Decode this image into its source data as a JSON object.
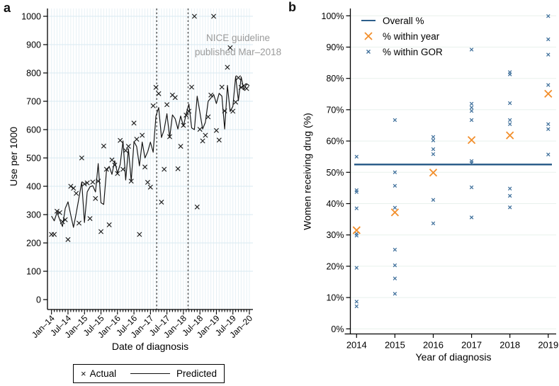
{
  "figure": {
    "panel_a": {
      "letter": "a",
      "y_axis_title": "Use per 1000",
      "x_axis_title": "Date of diagnosis",
      "annotation_line1": "NICE guideline",
      "annotation_line2": "published Mar–2018",
      "legend": {
        "actual_marker": "×",
        "actual_label": "Actual",
        "predicted_label": "Predicted"
      }
    },
    "panel_b": {
      "letter": "b",
      "y_axis_title": "Women receiving drug (%)",
      "x_axis_title": "Year of diagnosis",
      "legend": {
        "overall_label": "Overall %",
        "year_label": "% within year",
        "gor_label": "% within GOR"
      }
    },
    "colors": {
      "overall_line": "#2d5f8b",
      "within_year": "#f28e2b",
      "within_gor": "#41719c",
      "actual_marker": "#1a1a1a",
      "predicted_line": "#111111",
      "vline": "#595959",
      "annotation": "#9b9b9b",
      "grid_a_h": "#d8eaf2",
      "grid_a_v": "#e4eff4",
      "grid_b": "#e8f1ec"
    }
  },
  "chart_data": [
    {
      "type": "line",
      "panel": "a",
      "title": "",
      "xlabel": "Date of diagnosis",
      "ylabel": "Use per 1000",
      "ylim": [
        0,
        1000
      ],
      "ytick_step": 100,
      "x_unit": "month index from Jan-2014",
      "xtick_labels": [
        "Jan–14",
        "Jul–14",
        "Jan–15",
        "Jul–15",
        "Jan–16",
        "Jul–16",
        "Jan–17",
        "Jul–17",
        "Jan–18",
        "Jul–18",
        "Jan–19",
        "Jul–19",
        "Jan–20"
      ],
      "xtick_month_interval": 6,
      "grid": true,
      "vline_months": [
        38.3,
        49.7
      ],
      "vline_meaning": "second dashed line = NICE guideline published Mar-2018",
      "series": [
        {
          "name": "Actual",
          "style": "scatter-x",
          "values": [
            230,
            230,
            312,
            307,
            275,
            282,
            212,
            400,
            393,
            375,
            270,
            500,
            408,
            412,
            286,
            415,
            357,
            418,
            240,
            542,
            460,
            264,
            493,
            475,
            445,
            562,
            460,
            526,
            541,
            418,
            623,
            566,
            230,
            580,
            468,
            414,
            397,
            684,
            749,
            727,
            344,
            460,
            688,
            575,
            722,
            713,
            462,
            541,
            615,
            651,
            665,
            750,
            1000,
            327,
            601,
            560,
            580,
            645,
            722,
            1000,
            597,
            563,
            750,
            666,
            820,
            889,
            665,
            697,
            783,
            749,
            755,
            745
          ]
        },
        {
          "name": "Predicted",
          "style": "line",
          "values": [
            295,
            278,
            308,
            282,
            258,
            322,
            345,
            298,
            255,
            305,
            360,
            415,
            272,
            380,
            398,
            402,
            380,
            480,
            342,
            336,
            455,
            470,
            442,
            490,
            446,
            478,
            560,
            422,
            532,
            418,
            558,
            540,
            472,
            556,
            500,
            522,
            556,
            520,
            648,
            678,
            572,
            600,
            656,
            572,
            652,
            638,
            602,
            648,
            612,
            656,
            690,
            606,
            600,
            718,
            660,
            602,
            626,
            700,
            712,
            724,
            692,
            728,
            718,
            602,
            756,
            664,
            682,
            788,
            702,
            786,
            740,
            762,
            755
          ]
        }
      ]
    },
    {
      "type": "scatter",
      "panel": "b",
      "title": "",
      "xlabel": "Year of diagnosis",
      "ylabel": "Women receiving drug (%)",
      "ylim": [
        0,
        100
      ],
      "ytick_step": 10,
      "ytick_suffix": "%",
      "grid": true,
      "categories": [
        2014,
        2015,
        2016,
        2017,
        2018,
        2019
      ],
      "overall_pct": 52.5,
      "within_year_pct": [
        31.5,
        37.2,
        49.9,
        60.3,
        61.8,
        75.1
      ],
      "within_gor_pct": [
        [
          55.0,
          44.3,
          43.7,
          38.5,
          30.4,
          29.8,
          19.5,
          8.7,
          7.2
        ],
        [
          66.7,
          50.0,
          45.7,
          38.7,
          25.3,
          20.3,
          16.1,
          11.2
        ],
        [
          61.3,
          60.2,
          57.4,
          55.8,
          41.2,
          33.7
        ],
        [
          89.2,
          71.9,
          70.7,
          69.6,
          66.7,
          53.6,
          53.0,
          45.2,
          35.6
        ],
        [
          82.0,
          81.3,
          72.1,
          66.7,
          65.4,
          44.8,
          42.5,
          38.8
        ],
        [
          99.9,
          92.5,
          87.6,
          77.9,
          65.4,
          63.8,
          55.7
        ]
      ],
      "legend_position": "top-left inside"
    }
  ]
}
